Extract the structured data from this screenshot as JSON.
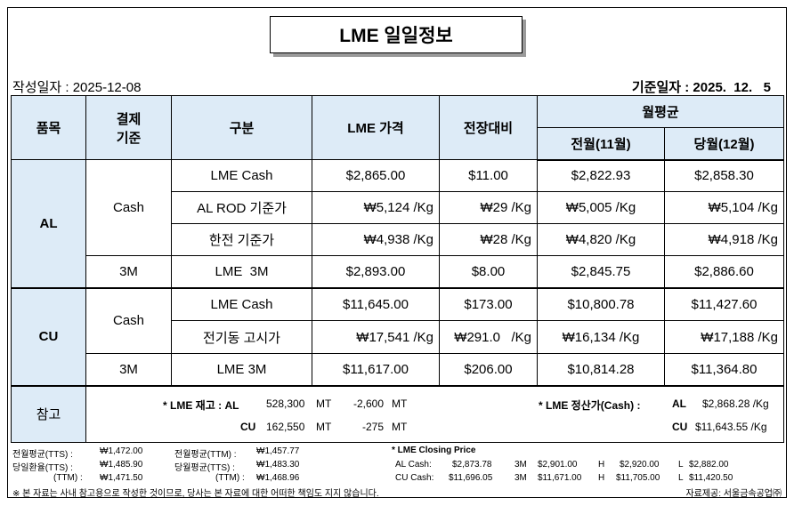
{
  "title": "LME 일일정보",
  "written_date_label": "작성일자 :",
  "written_date": "2025-12-08",
  "base_date_label": "기준일자 :",
  "base_date": "2025.  12.   5",
  "headers": {
    "item": "품목",
    "settle_line1": "결제",
    "settle_line2": "기준",
    "category": "구분",
    "lme_price": "LME 가격",
    "change": "전장대비",
    "monthly_avg": "월평균",
    "prev_month": "전월(11월)",
    "this_month": "당월(12월)"
  },
  "rows": [
    {
      "item": "AL",
      "settle": "Cash",
      "category": "LME Cash",
      "price": "$2,865.00",
      "change": "$11.00",
      "prev": "$2,822.93",
      "cur": "$2,858.30"
    },
    {
      "category": "AL ROD 기준가",
      "price": "₩5,124 /Kg",
      "change": "₩29 /Kg",
      "prev": "₩5,005 /Kg",
      "cur": "₩5,104 /Kg"
    },
    {
      "category": "한전 기준가",
      "price": "₩4,938 /Kg",
      "change": "₩28 /Kg",
      "prev": "₩4,820 /Kg",
      "cur": "₩4,918 /Kg"
    },
    {
      "settle": "3M",
      "category": "LME  3M",
      "price": "$2,893.00",
      "change": "$8.00",
      "prev": "$2,845.75",
      "cur": "$2,886.60"
    },
    {
      "item": "CU",
      "settle": "Cash",
      "category": "LME Cash",
      "price": "$11,645.00",
      "change": "$173.00",
      "prev": "$10,800.78",
      "cur": "$11,427.60"
    },
    {
      "category": "전기동 고시가",
      "price": "₩17,541 /Kg",
      "change": "₩291.0   /Kg",
      "prev": "₩16,134 /Kg",
      "cur": "₩17,188 /Kg"
    },
    {
      "settle": "3M",
      "category": "LME 3M",
      "price": "$11,617.00",
      "change": "$206.00",
      "prev": "$10,814.28",
      "cur": "$11,364.80"
    }
  ],
  "reference": {
    "label": "참고",
    "stock_title": "* LME 재고 :",
    "stock_al_name": "AL",
    "stock_al_qty": "528,300",
    "stock_al_unit": "MT",
    "stock_al_change": "-2,600",
    "stock_al_change_unit": "MT",
    "stock_cu_name": "CU",
    "stock_cu_qty": "162,550",
    "stock_cu_unit": "MT",
    "stock_cu_change": "-275",
    "stock_cu_change_unit": "MT",
    "settle_title": "* LME 정산가(Cash) :",
    "settle_al_name": "AL",
    "settle_al_value": "$2,868.28 /Kg",
    "settle_cu_name": "CU",
    "settle_cu_value": "$11,643.55 /Kg"
  },
  "footer": {
    "l1_label": "전월평균(TTS) :",
    "l1_value": "₩1,472.00",
    "l1b_label": "전월평균(TTM) :",
    "l1b_value": "₩1,457.77",
    "l2_label": "당일환율(TTS) :",
    "l2_value": "₩1,485.90",
    "l2b_label": "당월평균(TTS) :",
    "l2b_value": "₩1,483.30",
    "l3_label": "(TTM) :",
    "l3_value": "₩1,471.50",
    "l3b_label": "(TTM) :",
    "l3b_value": "₩1,468.96",
    "closing_title": "* LME Closing Price",
    "al_cash_label": "AL  Cash:",
    "al_cash": "$2,873.78",
    "al_3m_label": "3M",
    "al_3m": "$2,901.00",
    "al_h_label": "H",
    "al_h": "$2,920.00",
    "al_l_label": "L",
    "al_l": "$2,882.00",
    "cu_cash_label": "CU  Cash:",
    "cu_cash": "$11,696.05",
    "cu_3m_label": "3M",
    "cu_3m": "$11,671.00",
    "cu_h_label": "H",
    "cu_h": "$11,705.00",
    "cu_l_label": "L",
    "cu_l": "$11,420.50",
    "disclaimer": "※ 본 자료는 사내 참고용으로 작성한 것이므로, 당사는 본 자료에 대한 어떠한 책임도 지지 않습니다.",
    "source": "자료제공: 서울금속공업㈜"
  }
}
